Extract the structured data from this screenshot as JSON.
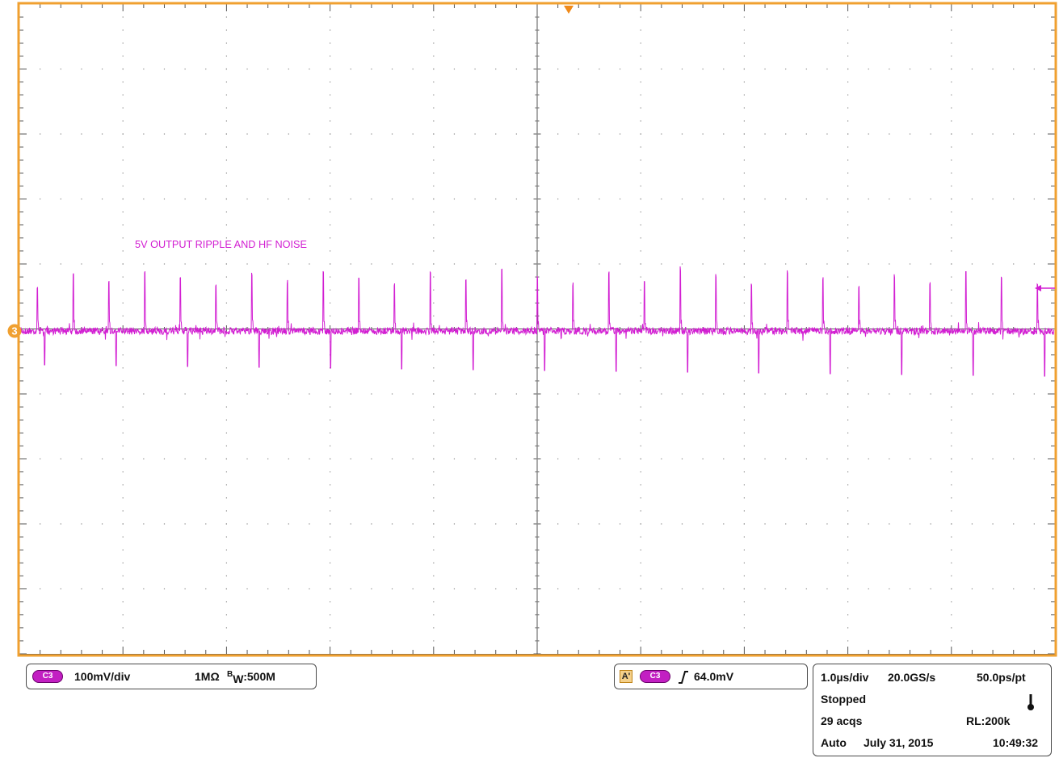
{
  "display": {
    "annotation": "5V OUTPUT RIPPLE AND HF NOISE",
    "channel_marker": "3",
    "colors": {
      "frame": "#f0a030",
      "trace": "#d21ed2",
      "grid": "#555555",
      "trigger": "#f08a1a",
      "pill": "#c21fc2"
    }
  },
  "vertical_panel": {
    "channel_badge": "C3",
    "scale": "100mV/div",
    "impedance": "1MΩ",
    "bandwidth_prefix": "B",
    "bandwidth_sub": "W",
    "bandwidth_value": ":500M"
  },
  "trigger_panel": {
    "source_box": "A'",
    "channel_badge": "C3",
    "slope_icon": "rising-edge-icon",
    "level": "64.0mV"
  },
  "acquisition_panel": {
    "time_per_div": "1.0µs/div",
    "sample_rate": "20.0GS/s",
    "resolution": "50.0ps/pt",
    "state": "Stopped",
    "state_icon": "thermometer-icon",
    "acquisitions": "29 acqs",
    "record_length": "RL:200k",
    "trigger_mode": "Auto",
    "date": "July 31, 2015",
    "time": "10:49:32"
  }
}
